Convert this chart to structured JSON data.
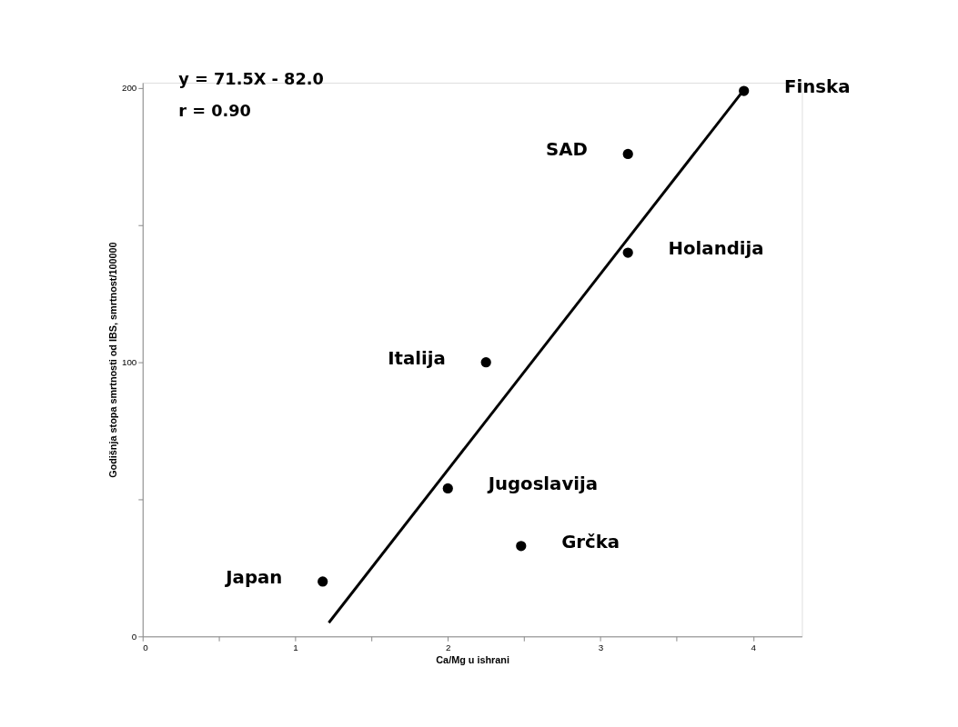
{
  "chart_data": {
    "type": "scatter",
    "xlabel": "Ca/Mg u ishrani",
    "ylabel": "Godišnja stopa smrtnosti od IBS, smrtnost/100000",
    "x": [
      3.94,
      3.18,
      3.18,
      2.25,
      2.0,
      2.48,
      1.18
    ],
    "series": [
      {
        "color": "#000000",
        "marker": "circle",
        "values": [
          199,
          176,
          140,
          100,
          54,
          33,
          20
        ]
      },
      {
        "type": "line",
        "color": "#000000",
        "x": [
          1.22,
          3.92
        ],
        "values": [
          5,
          198
        ]
      }
    ],
    "annotations": [
      "y = 71.5X - 82.0",
      "r = 0.90",
      {
        "text": "Finska",
        "x": 3.94,
        "y": 199
      },
      {
        "text": "SAD",
        "x": 3.18,
        "y": 176
      },
      {
        "text": "Holandija",
        "x": 3.18,
        "y": 140
      },
      {
        "text": "Italija",
        "x": 2.25,
        "y": 100
      },
      {
        "text": "Jugoslavija",
        "x": 2.0,
        "y": 54
      },
      {
        "text": "Grčka",
        "x": 2.48,
        "y": 33
      },
      {
        "text": "Japan",
        "x": 1.18,
        "y": 20
      }
    ],
    "xlim": [
      0,
      4.32
    ],
    "ylim": [
      0,
      202
    ],
    "xticks": [
      0,
      {
        "value": 0.5,
        "label": null
      },
      1,
      {
        "value": 1.5,
        "label": null
      },
      2,
      {
        "value": 2.5,
        "label": null
      },
      3,
      {
        "value": 3.5,
        "label": null
      },
      4
    ],
    "yticks": [
      0,
      {
        "value": 50,
        "label": null
      },
      100,
      {
        "value": 150,
        "label": null
      },
      200
    ],
    "grid": false
  }
}
